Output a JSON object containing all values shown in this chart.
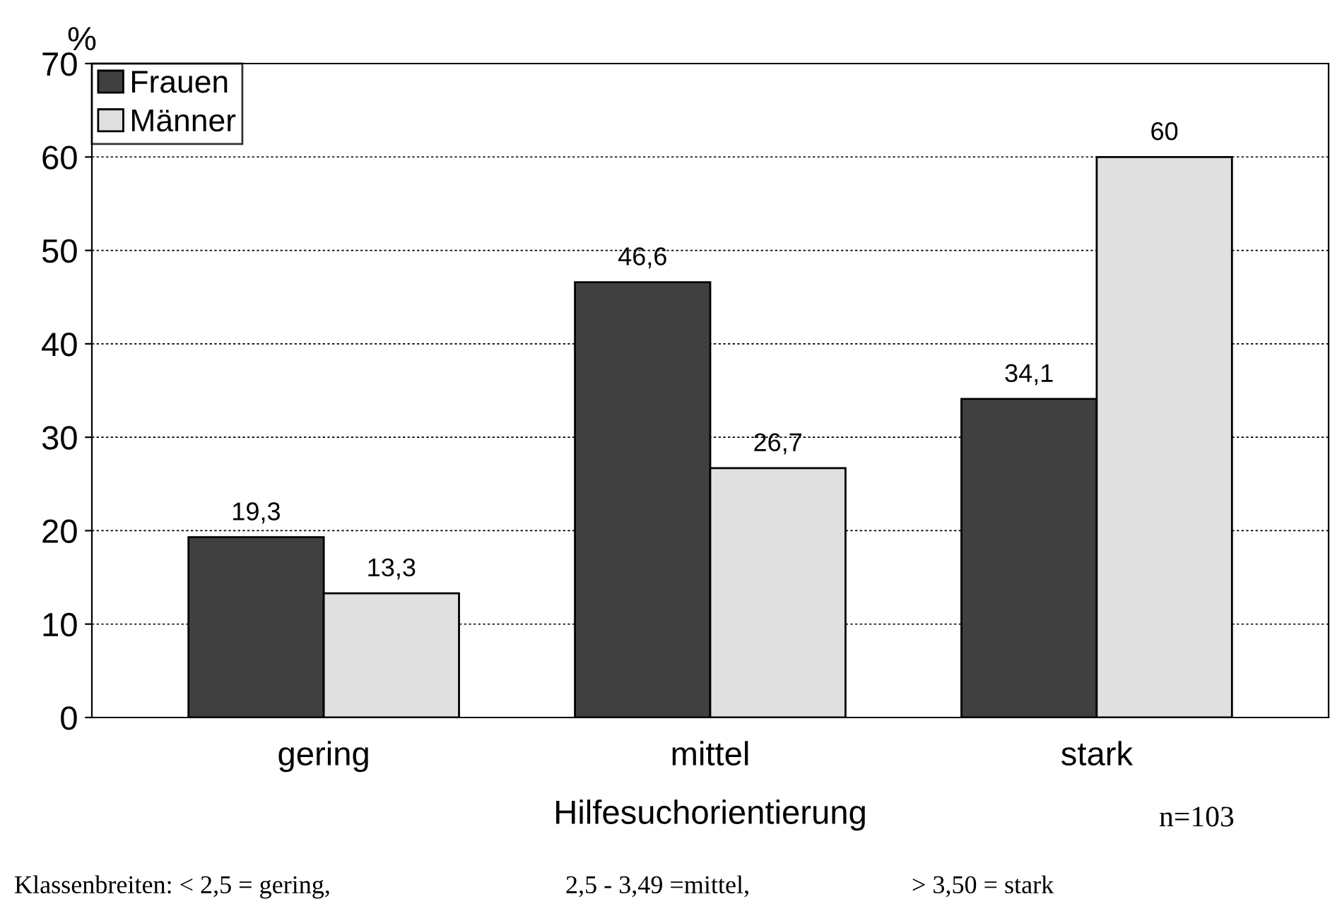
{
  "chart_data": {
    "type": "bar",
    "xlabel": "Hilfesuchorientierung",
    "ylabel": "%",
    "categories": [
      "gering",
      "mittel",
      "stark"
    ],
    "series": [
      {
        "name": "Frauen",
        "color": "#404040",
        "values": [
          19.3,
          46.6,
          34.1
        ],
        "value_labels": [
          "19,3",
          "46,6",
          "34,1"
        ]
      },
      {
        "name": "Männer",
        "color": "#e0e0e0",
        "values": [
          13.3,
          26.7,
          60
        ],
        "value_labels": [
          "13,3",
          "26,7",
          "60"
        ]
      }
    ],
    "ylim": [
      0,
      70
    ],
    "yticks": [
      0,
      10,
      20,
      30,
      40,
      50,
      60,
      70
    ],
    "grid": "y",
    "legend": "top left",
    "annotations": [
      "n=103",
      "Klassenbreiten: < 2,5 = gering,",
      "2,5 - 3,49 =mittel,",
      "> 3,50 = stark"
    ]
  }
}
